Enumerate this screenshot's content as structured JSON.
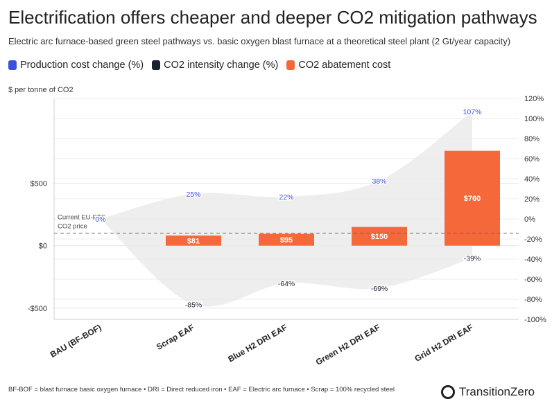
{
  "title": "Electrification offers cheaper and deeper CO2 mitigation pathways",
  "subtitle": "Electric arc furnace-based green steel pathways vs. basic oxygen blast furnace at a theoretical steel plant (2 Gt/year capacity)",
  "legend": [
    {
      "label": "Production cost change (%)",
      "color": "#3b4fe0"
    },
    {
      "label": "CO2 intensity change (%)",
      "color": "#1c2130"
    },
    {
      "label": "CO2 abatement cost",
      "color": "#f4683a"
    }
  ],
  "footnote": "BF-BOF = blast furnace basic oxygen furnace • DRI = Direct reduced iron • EAF = Electric arc furnace • Scrap = 100% recycled steel",
  "logo_text": "TransitionZero",
  "chart_data": {
    "type": "bar",
    "ylabel": "$ per tonne of CO2",
    "categories": [
      "BAU (BF-BOF)",
      "Scrap EAF",
      "Blue H2 DRI EAF",
      "Green H2 DRI EAF",
      "Grid H2 DRI EAF"
    ],
    "series": [
      {
        "name": "CO2 abatement cost",
        "values": [
          0,
          81,
          95,
          150,
          760
        ],
        "labels": [
          "",
          "$81",
          "$95",
          "$150",
          "$760"
        ],
        "color": "#f4683a"
      },
      {
        "name": "Production cost change (%)",
        "values": [
          0,
          25,
          22,
          38,
          107
        ],
        "labels": [
          "0%",
          "25%",
          "22%",
          "38%",
          "107%"
        ],
        "color": "#3b4fe0"
      },
      {
        "name": "CO2 intensity change (%)",
        "values": [
          0,
          -85,
          -64,
          -69,
          -39
        ],
        "labels": [
          "",
          "-85%",
          "-64%",
          "-69%",
          "-39%"
        ],
        "color": "#1c2130"
      }
    ],
    "ylim": [
      -590,
      1180
    ],
    "yticks": [
      -500,
      0,
      500
    ],
    "ytick_labels": [
      "-$500",
      "$0",
      "$500"
    ],
    "y2lim": [
      -100,
      120
    ],
    "y2ticks": [
      -100,
      -80,
      -60,
      -40,
      -20,
      0,
      20,
      40,
      60,
      80,
      100,
      120
    ],
    "y2tick_labels": [
      "-100%",
      "-80%",
      "-60%",
      "-40%",
      "-20%",
      "0%",
      "20%",
      "40%",
      "60%",
      "80%",
      "100%",
      "120%"
    ],
    "reference_line": {
      "value": 100,
      "label_line1": "Current EU-ETS",
      "label_line2": "CO2 price"
    },
    "grid": true
  }
}
